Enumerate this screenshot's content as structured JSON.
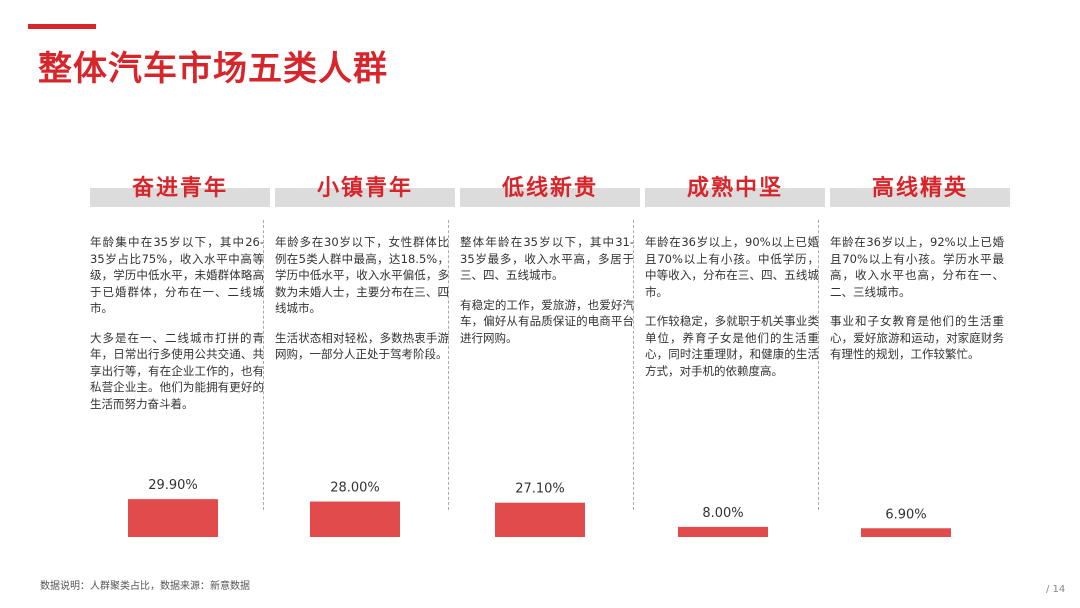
{
  "title": "整体汽车市场五类人群",
  "footnote": "数据说明：人群聚类占比，数据来源：新意数据",
  "page_number": "/ 14",
  "colors": {
    "accent": "#d7262b",
    "bar": "#e14b4b",
    "band": "#dcdcdc"
  },
  "segments": [
    {
      "name": "奋进青年",
      "paragraphs": [
        "年龄集中在35岁以下，其中26-35岁占比75%，收入水平中高等级，学历中低水平，未婚群体略高于已婚群体，分布在一、二线城市。",
        "大多是在一、二线城市打拼的青年，日常出行多使用公共交通、共享出行等，有在企业工作的，也有私营企业主。他们为能拥有更好的生活而努力奋斗着。"
      ],
      "share_label": "29.90%"
    },
    {
      "name": "小镇青年",
      "paragraphs": [
        "年龄多在30岁以下，女性群体比例在5类人群中最高，达18.5%，学历中低水平，收入水平偏低，多数为未婚人士，主要分布在三、四线城市。",
        "生活状态相对轻松，多数热衷手游网购，一部分人正处于驾考阶段。"
      ],
      "share_label": "28.00%"
    },
    {
      "name": "低线新贵",
      "paragraphs": [
        "整体年龄在35岁以下，其中31-35岁最多，收入水平高，多居于三、四、五线城市。",
        "有稳定的工作，爱旅游，也爱好汽车，偏好从有品质保证的电商平台进行网购。"
      ],
      "share_label": "27.10%"
    },
    {
      "name": "成熟中坚",
      "paragraphs": [
        "年龄在36岁以上，90%以上已婚且70%以上有小孩。中低学历，中等收入，分布在三、四、五线城市。",
        "工作较稳定，多就职于机关事业类单位，养育子女是他们的生活重心，同时注重理财，和健康的生活方式，对手机的依赖度高。"
      ],
      "share_label": "8.00%"
    },
    {
      "name": "高线精英",
      "paragraphs": [
        "年龄在36岁以上，92%以上已婚且70%以上有小孩。学历水平最高，收入水平也高，分布在一、二、三线城市。",
        "事业和子女教育是他们的生活重心，爱好旅游和运动，对家庭财务有理性的规划，工作较繁忙。"
      ],
      "share_label": "6.90%"
    }
  ],
  "chart_data": {
    "type": "bar",
    "categories": [
      "奋进青年",
      "小镇青年",
      "低线新贵",
      "成熟中坚",
      "高线精英"
    ],
    "values": [
      29.9,
      28.0,
      27.1,
      8.0,
      6.9
    ],
    "data_labels": [
      "29.90%",
      "28.00%",
      "27.10%",
      "8.00%",
      "6.90%"
    ],
    "title": "",
    "xlabel": "",
    "ylabel": "",
    "ylim": [
      0,
      30
    ],
    "grid": false,
    "legend": "none"
  }
}
